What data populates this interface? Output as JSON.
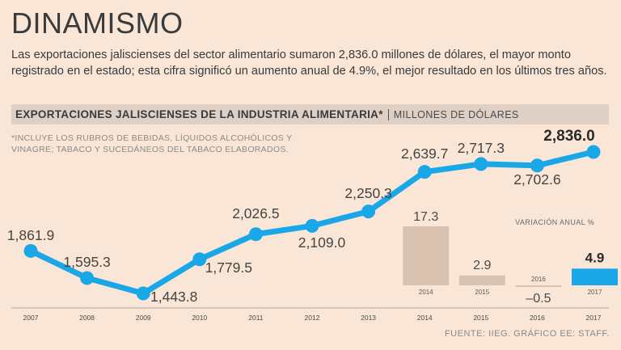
{
  "title": "DINAMISMO",
  "description": "Las exportaciones jaliscienses del sector alimentario sumaron 2,836.0 millones de dólares, el mayor monto registrado en el estado; esta cifra significó un aumento anual de 4.9%, el mejor resultado en los últimos tres años.",
  "band": {
    "title": "EXPORTACIONES JALISCIENSES DE LA INDUSTRIA ALIMENTARIA*",
    "subtitle": "MILLONES DE DÓLARES"
  },
  "note": "*INCLUYE LOS RUBROS DE BEBIDAS, LÍQUIDOS ALCOHÓLICOS Y VINAGRE; TABACO Y SUCEDÁNEOS DEL TABACO ELABORADOS.",
  "source": "FUENTE: IIEG. GRÁFICO EE: STAFF.",
  "colors": {
    "line": "#1aa7e8",
    "bar": "#d9c3b0",
    "bar_highlight": "#1aa7e8",
    "background": "#f9e6d6"
  },
  "chart_data": [
    {
      "type": "line",
      "title": "EXPORTACIONES JALISCIENSES DE LA INDUSTRIA ALIMENTARIA*",
      "ylabel": "MILLONES DE DÓLARES",
      "x": [
        "2007",
        "2008",
        "2009",
        "2010",
        "2011",
        "2012",
        "2013",
        "2014",
        "2015",
        "2016",
        "2017"
      ],
      "values": [
        1861.9,
        1595.3,
        1443.8,
        1779.5,
        2026.5,
        2109.0,
        2250.3,
        2639.7,
        2717.3,
        2702.6,
        2836.0
      ],
      "labels": [
        "1,861.9",
        "1,595.3",
        "1,443.8",
        "1,779.5",
        "2,026.5",
        "2,109.0",
        "2,250.3",
        "2,639.7",
        "2,717.3",
        "2,702.6",
        "2,836.0"
      ],
      "label_positions": [
        "above",
        "above",
        "below",
        "below",
        "above",
        "below",
        "above",
        "above",
        "above",
        "below",
        "above"
      ],
      "highlight_index": 10,
      "ylim": [
        1400,
        2900
      ]
    },
    {
      "type": "bar",
      "title": "VARIACIÓN ANUAL %",
      "categories": [
        "2014",
        "2015",
        "2016",
        "2017"
      ],
      "values": [
        17.3,
        2.9,
        -0.5,
        4.9
      ],
      "labels": [
        "17.3",
        "2.9",
        "–0.5",
        "4.9"
      ],
      "highlight_index": 3
    }
  ]
}
